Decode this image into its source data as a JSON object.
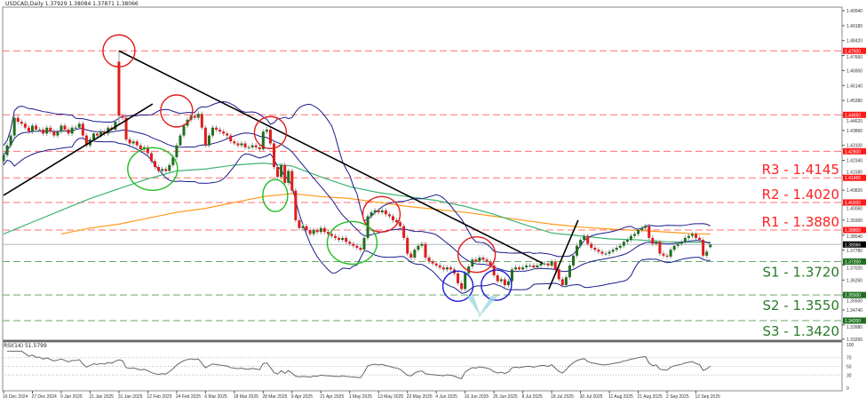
{
  "header": {
    "symbol_line": "USDCAD,Daily 1.37929 1.38084 1.37871 1.38066"
  },
  "rsi": {
    "label": "RSI(14) 51.5799",
    "levels": [
      "100",
      "70",
      "50",
      "30",
      "0"
    ]
  },
  "colors": {
    "bull": "#1f6e1f",
    "bear": "#e01b1b",
    "bands": "#1a1a8c",
    "ma_green": "#3cb371",
    "ma_orange": "#ff9a1a",
    "resistance": "#ff2020",
    "support": "#2a7a2a",
    "trend": "#000000"
  },
  "chart_data": {
    "type": "candlestick",
    "title": "USDCAD,Daily",
    "last_bar": {
      "open": 1.37929,
      "high": 1.38084,
      "low": 1.37871,
      "close": 1.38066
    },
    "ylim": [
      1.3326,
      1.4994
    ],
    "y_ticks": [
      "1.49940",
      "1.49180",
      "1.48420",
      "1.47660",
      "1.46900",
      "1.46140",
      "1.45380",
      "1.44620",
      "1.43860",
      "1.43100",
      "1.42340",
      "1.41580",
      "1.40820",
      "1.40060",
      "1.39300",
      "1.38540",
      "1.37780",
      "1.37020",
      "1.36260",
      "1.35500",
      "1.34740",
      "1.33980",
      "1.33260"
    ],
    "x_ticks": [
      "16 Dec 2024",
      "27 Dec 2024",
      "9 Jan 2025",
      "21 Jan 2025",
      "31 Jan 2025",
      "12 Feb 2025",
      "24 Feb 2025",
      "6 Mar 2025",
      "18 Mar 2025",
      "28 Mar 2025",
      "9 Apr 2025",
      "21 Apr 2025",
      "1 May 2025",
      "13 May 2025",
      "23 May 2025",
      "4 Jun 2025",
      "16 Jun 2025",
      "26 Jun 2025",
      "8 Jul 2025",
      "18 Jul 2025",
      "30 Jul 2025",
      "11 Aug 2025",
      "21 Aug 2025",
      "2 Sep 2025",
      "12 Sep 2025"
    ],
    "closes": [
      1.426,
      1.431,
      1.436,
      1.445,
      1.443,
      1.442,
      1.44,
      1.438,
      1.441,
      1.439,
      1.439,
      1.437,
      1.44,
      1.438,
      1.436,
      1.438,
      1.441,
      1.439,
      1.437,
      1.44,
      1.44,
      1.442,
      1.436,
      1.431,
      1.434,
      1.437,
      1.436,
      1.438,
      1.437,
      1.44,
      1.439,
      1.443,
      1.446,
      1.445,
      1.434,
      1.432,
      1.433,
      1.431,
      1.429,
      1.43,
      1.427,
      1.423,
      1.42,
      1.418,
      1.419,
      1.418,
      1.421,
      1.425,
      1.431,
      1.436,
      1.441,
      1.444,
      1.446,
      1.445,
      1.447,
      1.44,
      1.431,
      1.436,
      1.44,
      1.439,
      1.438,
      1.437,
      1.436,
      1.433,
      1.432,
      1.431,
      1.432,
      1.43,
      1.43,
      1.431,
      1.43,
      1.429,
      1.438,
      1.439,
      1.432,
      1.42,
      1.415,
      1.421,
      1.412,
      1.418,
      1.408,
      1.393,
      1.389,
      1.39,
      1.388,
      1.386,
      1.388,
      1.387,
      1.389,
      1.387,
      1.386,
      1.385,
      1.384,
      1.383,
      1.384,
      1.382,
      1.381,
      1.38,
      1.379,
      1.378,
      1.384,
      1.395,
      1.397,
      1.398,
      1.397,
      1.398,
      1.396,
      1.395,
      1.393,
      1.392,
      1.39,
      1.384,
      1.376,
      1.374,
      1.378,
      1.38,
      1.381,
      1.374,
      1.372,
      1.371,
      1.37,
      1.369,
      1.368,
      1.369,
      1.368,
      1.366,
      1.361,
      1.358,
      1.366,
      1.3695,
      1.373,
      1.372,
      1.374,
      1.373,
      1.372,
      1.37,
      1.365,
      1.362,
      1.363,
      1.36,
      1.362,
      1.368,
      1.369,
      1.368,
      1.369,
      1.37,
      1.37,
      1.369,
      1.37,
      1.371,
      1.371,
      1.37,
      1.372,
      1.368,
      1.363,
      1.36,
      1.364,
      1.37,
      1.375,
      1.38,
      1.383,
      1.385,
      1.381,
      1.379,
      1.378,
      1.377,
      1.376,
      1.376,
      1.377,
      1.378,
      1.379,
      1.38,
      1.382,
      1.383,
      1.385,
      1.386,
      1.388,
      1.389,
      1.39,
      1.384,
      1.381,
      1.382,
      1.376,
      1.375,
      1.3745,
      1.378,
      1.38,
      1.381,
      1.382,
      1.384,
      1.385,
      1.386,
      1.384,
      1.383,
      1.375,
      1.377,
      1.38066
    ],
    "spike_high": {
      "date": "31 Jan 2025",
      "high": 1.479
    },
    "ma_green_at_ticks": [
      1.386,
      1.392,
      1.398,
      1.404,
      1.409,
      1.414,
      1.418,
      1.419,
      1.421,
      1.422,
      1.4205,
      1.415,
      1.41,
      1.407,
      1.405,
      1.403,
      1.4,
      1.396,
      1.391,
      1.3865,
      1.385,
      1.3835,
      1.383,
      1.382,
      1.3818
    ],
    "ma_orange_at_ticks": [
      null,
      null,
      1.386,
      1.389,
      1.391,
      1.394,
      1.397,
      1.399,
      1.402,
      1.405,
      1.4065,
      1.405,
      1.404,
      1.402,
      1.4,
      1.3985,
      1.397,
      1.395,
      1.393,
      1.391,
      1.3895,
      1.3885,
      1.3878,
      1.387,
      1.386
    ],
    "bollinger": {
      "period": 20,
      "deviations": 2
    },
    "rsi_period": 14,
    "levels": [
      {
        "price": 1.479,
        "tag": "1.47900",
        "kind": "resistance",
        "label": ""
      },
      {
        "price": 1.4465,
        "tag": "1.44650",
        "kind": "resistance",
        "label": ""
      },
      {
        "price": 1.428,
        "tag": "1.42800",
        "kind": "resistance",
        "label": ""
      },
      {
        "price": 1.4145,
        "tag": "1.41450",
        "kind": "resistance",
        "label": "R3 - 1.4145"
      },
      {
        "price": 1.402,
        "tag": "1.40200",
        "kind": "resistance",
        "label": "R2 - 1.4020"
      },
      {
        "price": 1.388,
        "tag": "1.38800",
        "kind": "resistance",
        "label": "R1 - 1.3880"
      },
      {
        "price": 1.372,
        "tag": "1.37200",
        "kind": "support",
        "label": "S1 - 1.3720"
      },
      {
        "price": 1.355,
        "tag": "1.35500",
        "kind": "support",
        "label": "S2 - 1.3550"
      },
      {
        "price": 1.342,
        "tag": "1.34200",
        "kind": "support",
        "label": "S3 - 1.3420"
      }
    ],
    "current_price": {
      "price": 1.38066,
      "tag": "1.38066"
    },
    "trendlines": [
      {
        "from": {
          "date": "16 Dec 2024",
          "price": 1.4056
        },
        "to": {
          "date": "14 Feb 2025",
          "price": 1.452
        }
      },
      {
        "from": {
          "date": "31 Jan 2025",
          "price": 1.479
        },
        "to": {
          "date": "15 Jul 2025",
          "price": 1.371
        }
      },
      {
        "from": {
          "date": "17 Jul 2025",
          "price": 1.358
        },
        "to": {
          "date": "29 Jul 2025",
          "price": 1.393
        }
      }
    ],
    "highlights": [
      {
        "color": "red",
        "date": "31 Jan 2025",
        "price": 1.479
      },
      {
        "color": "red",
        "date": "24 Feb 2025",
        "price": 1.4485
      },
      {
        "color": "red",
        "date": "31 Mar 2025",
        "price": 1.4375
      },
      {
        "color": "red",
        "date": "14 May 2025",
        "price": 1.396
      },
      {
        "color": "red",
        "date": "20 Jun 2025",
        "price": 1.3755
      },
      {
        "color": "green",
        "date": "14 Feb 2025",
        "price": 1.419
      },
      {
        "color": "green",
        "date": "2 Apr 2025",
        "price": 1.4055
      },
      {
        "color": "green",
        "date": "2 May 2025",
        "price": 1.3815
      },
      {
        "color": "blue",
        "date": "13 Jun 2025",
        "price": 1.3595
      },
      {
        "color": "blue",
        "date": "27 Jun 2025",
        "price": 1.36
      }
    ]
  }
}
